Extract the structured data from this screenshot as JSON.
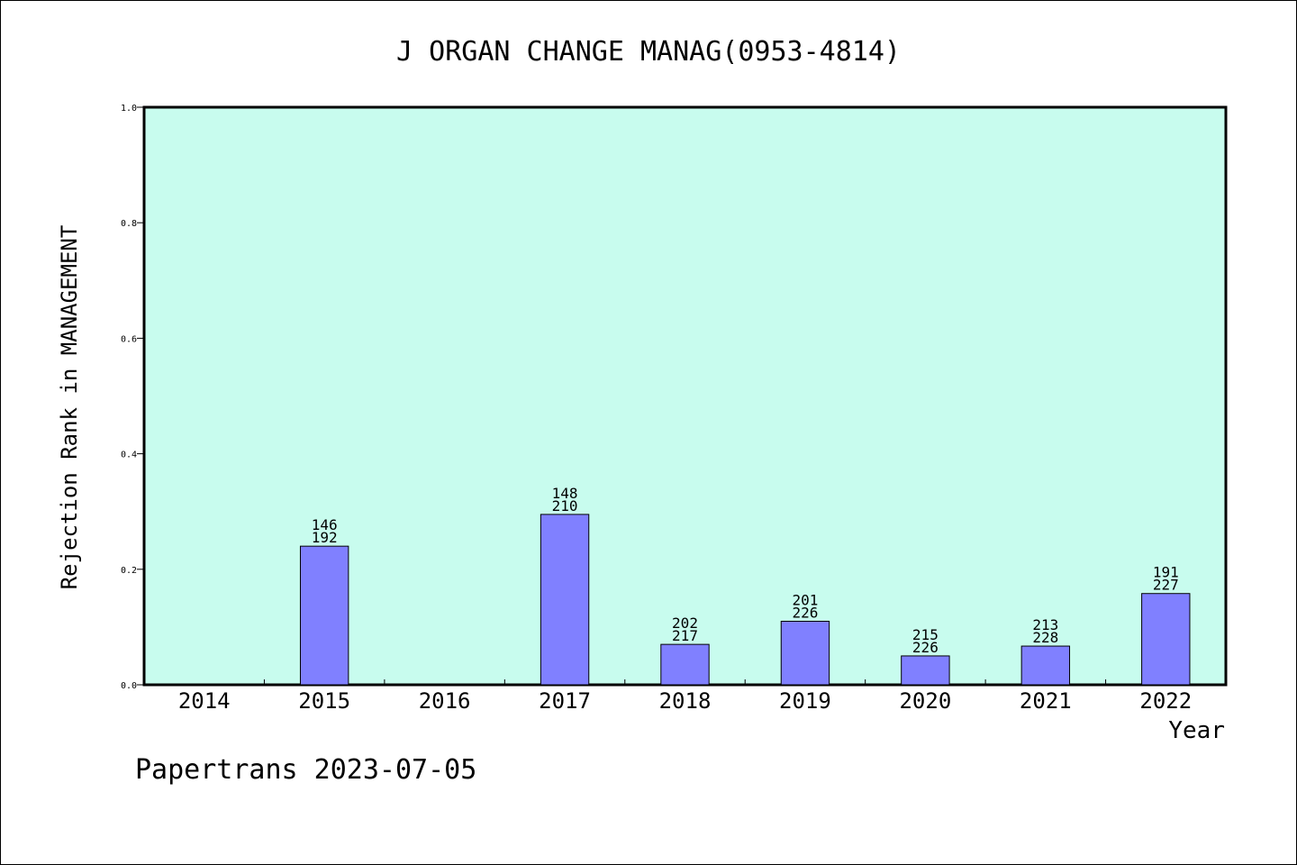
{
  "chart_data": {
    "type": "bar",
    "title": "J ORGAN CHANGE MANAG(0953-4814)",
    "xlabel": "Year",
    "ylabel": "Rejection Rank in MANAGEMENT",
    "footer": "Papertrans 2023-07-05",
    "ylim": [
      0,
      1.0
    ],
    "y_ticks": [
      "0.0",
      "0.2",
      "0.4",
      "0.6",
      "0.8",
      "1.0"
    ],
    "grid": false,
    "categories": [
      "2014",
      "2015",
      "2016",
      "2017",
      "2018",
      "2019",
      "2020",
      "2021",
      "2022"
    ],
    "values": [
      null,
      0.24,
      null,
      0.295,
      0.07,
      0.11,
      0.05,
      0.067,
      0.158
    ],
    "labels_top": [
      "",
      "146",
      "",
      "148",
      "202",
      "201",
      "215",
      "213",
      "191"
    ],
    "labels_bottom": [
      "",
      "192",
      "",
      "210",
      "217",
      "226",
      "226",
      "228",
      "227"
    ],
    "colors": {
      "plot_background": "#c8fcee",
      "bar_fill": "#8080ff",
      "bar_stroke": "#000000"
    }
  }
}
